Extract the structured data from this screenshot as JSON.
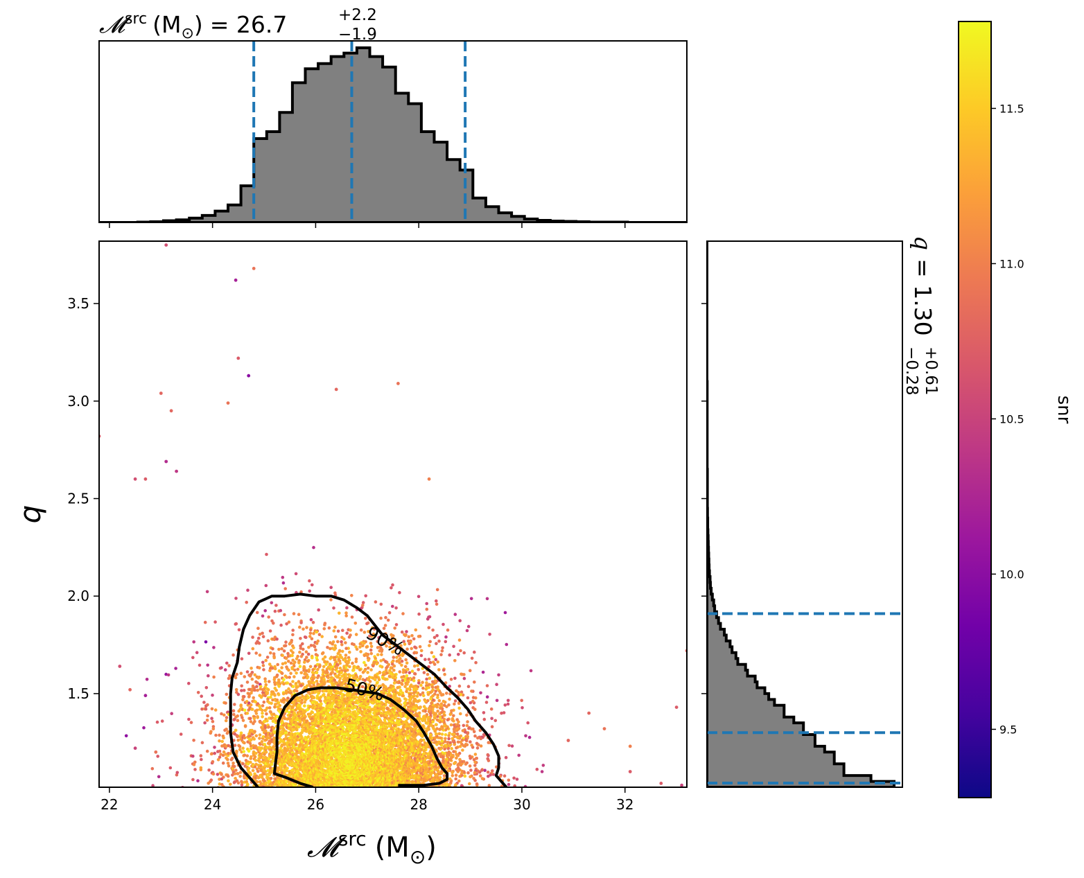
{
  "chart_data": [
    {
      "type": "scatter",
      "panel": "joint",
      "xlabel": "𝓜src (M⊙)",
      "xlabel_parts": {
        "symbol": "𝓜",
        "sup": "src",
        "units": "(M",
        "units_sub": "⊙",
        "units_close": ")"
      },
      "ylabel": "q",
      "xlim": [
        21.8,
        33.2
      ],
      "ylim": [
        1.02,
        3.82
      ],
      "xticks": [
        22,
        24,
        26,
        28,
        30,
        32
      ],
      "yticks": [
        1.5,
        2.0,
        2.5,
        3.0,
        3.5
      ],
      "xtick_labels": [
        "22",
        "24",
        "26",
        "28",
        "30",
        "32"
      ],
      "ytick_labels": [
        "1.5",
        "2.0",
        "2.5",
        "3.0",
        "3.5"
      ],
      "color_by": "snr",
      "point_cloud": {
        "x_center": 26.7,
        "x_spread": 1.1,
        "q_min": 1.0,
        "q_mode": 1.0,
        "snr_range": [
          9.28,
          11.78
        ]
      },
      "outlier_points": [
        {
          "x": 23.1,
          "y": 3.8,
          "snr": 10.6
        },
        {
          "x": 24.8,
          "y": 3.68,
          "snr": 10.9
        },
        {
          "x": 24.45,
          "y": 3.62,
          "snr": 10.2
        },
        {
          "x": 24.5,
          "y": 3.22,
          "snr": 10.7
        },
        {
          "x": 24.7,
          "y": 3.13,
          "snr": 10.0
        },
        {
          "x": 23.0,
          "y": 3.04,
          "snr": 10.8
        },
        {
          "x": 26.4,
          "y": 3.06,
          "snr": 10.8
        },
        {
          "x": 27.6,
          "y": 3.09,
          "snr": 10.9
        },
        {
          "x": 21.8,
          "y": 2.82,
          "snr": 10.7
        },
        {
          "x": 23.2,
          "y": 2.95,
          "snr": 10.8
        },
        {
          "x": 24.3,
          "y": 2.99,
          "snr": 10.9
        },
        {
          "x": 23.1,
          "y": 2.69,
          "snr": 10.3
        },
        {
          "x": 23.3,
          "y": 2.64,
          "snr": 10.4
        },
        {
          "x": 22.5,
          "y": 2.6,
          "snr": 10.6
        },
        {
          "x": 22.7,
          "y": 2.6,
          "snr": 10.7
        },
        {
          "x": 28.2,
          "y": 2.6,
          "snr": 11.0
        },
        {
          "x": 33.2,
          "y": 1.72,
          "snr": 10.8
        },
        {
          "x": 33.0,
          "y": 1.43,
          "snr": 10.7
        },
        {
          "x": 22.2,
          "y": 1.64,
          "snr": 10.6
        },
        {
          "x": 22.4,
          "y": 1.52,
          "snr": 10.8
        },
        {
          "x": 22.7,
          "y": 1.49,
          "snr": 10.2
        },
        {
          "x": 22.5,
          "y": 1.22,
          "snr": 10.5
        },
        {
          "x": 22.9,
          "y": 1.2,
          "snr": 10.9
        },
        {
          "x": 32.1,
          "y": 1.23,
          "snr": 11.0
        },
        {
          "x": 32.1,
          "y": 1.1,
          "snr": 10.7
        },
        {
          "x": 32.7,
          "y": 1.04,
          "snr": 10.7
        },
        {
          "x": 31.6,
          "y": 1.32,
          "snr": 10.9
        },
        {
          "x": 31.3,
          "y": 1.4,
          "snr": 10.8
        },
        {
          "x": 30.9,
          "y": 1.26,
          "snr": 10.8
        },
        {
          "x": 33.1,
          "y": 1.03,
          "snr": 10.5
        }
      ],
      "contours": [
        {
          "label": "90%",
          "label_at": {
            "x": 27.35,
            "y": 1.77,
            "angle_deg": 28
          },
          "path": [
            [
              24.88,
              1.02
            ],
            [
              24.75,
              1.06
            ],
            [
              24.55,
              1.12
            ],
            [
              24.4,
              1.2
            ],
            [
              24.35,
              1.3
            ],
            [
              24.35,
              1.4
            ],
            [
              24.35,
              1.5
            ],
            [
              24.38,
              1.58
            ],
            [
              24.48,
              1.66
            ],
            [
              24.52,
              1.74
            ],
            [
              24.6,
              1.83
            ],
            [
              24.72,
              1.9
            ],
            [
              24.9,
              1.97
            ],
            [
              25.15,
              2.0
            ],
            [
              25.4,
              2.0
            ],
            [
              25.7,
              2.01
            ],
            [
              26.0,
              2.0
            ],
            [
              26.3,
              2.0
            ],
            [
              26.55,
              1.98
            ],
            [
              26.8,
              1.94
            ],
            [
              27.0,
              1.9
            ],
            [
              27.3,
              1.8
            ],
            [
              27.5,
              1.76
            ],
            [
              27.7,
              1.72
            ],
            [
              28.0,
              1.66
            ],
            [
              28.3,
              1.6
            ],
            [
              28.55,
              1.53
            ],
            [
              28.75,
              1.48
            ],
            [
              28.95,
              1.42
            ],
            [
              29.1,
              1.36
            ],
            [
              29.3,
              1.3
            ],
            [
              29.45,
              1.24
            ],
            [
              29.55,
              1.18
            ],
            [
              29.55,
              1.12
            ],
            [
              29.5,
              1.08
            ],
            [
              29.6,
              1.05
            ],
            [
              29.7,
              1.02
            ]
          ]
        },
        {
          "label": "50%",
          "label_at": {
            "x": 26.95,
            "y": 1.52,
            "angle_deg": 15
          },
          "path": [
            [
              25.95,
              1.02
            ],
            [
              25.7,
              1.04
            ],
            [
              25.42,
              1.07
            ],
            [
              25.2,
              1.09
            ],
            [
              25.22,
              1.14
            ],
            [
              25.25,
              1.2
            ],
            [
              25.25,
              1.28
            ],
            [
              25.28,
              1.36
            ],
            [
              25.4,
              1.43
            ],
            [
              25.6,
              1.49
            ],
            [
              25.85,
              1.52
            ],
            [
              26.1,
              1.53
            ],
            [
              26.4,
              1.53
            ],
            [
              26.7,
              1.52
            ],
            [
              26.95,
              1.51
            ],
            [
              27.2,
              1.5
            ],
            [
              27.45,
              1.47
            ],
            [
              27.7,
              1.42
            ],
            [
              27.95,
              1.36
            ],
            [
              28.1,
              1.3
            ],
            [
              28.25,
              1.23
            ],
            [
              28.35,
              1.17
            ],
            [
              28.45,
              1.12
            ],
            [
              28.55,
              1.09
            ],
            [
              28.55,
              1.06
            ],
            [
              28.4,
              1.04
            ],
            [
              28.1,
              1.03
            ],
            [
              27.6,
              1.03
            ]
          ]
        }
      ]
    },
    {
      "type": "bar",
      "panel": "top-marginal",
      "orientation": "vertical",
      "title_parts": {
        "symbol": "𝓜",
        "sup": "src",
        "units": "(M",
        "units_sub": "⊙",
        "units_close": ")",
        "eq": "= 26.7",
        "plus": "+2.2",
        "minus": "−1.9"
      },
      "xlim": [
        21.8,
        33.2
      ],
      "bin_edges": [
        21.8,
        22.05,
        22.3,
        22.55,
        22.8,
        23.05,
        23.3,
        23.55,
        23.8,
        24.05,
        24.3,
        24.55,
        24.8,
        25.05,
        25.3,
        25.55,
        25.8,
        26.05,
        26.3,
        26.55,
        26.8,
        27.05,
        27.3,
        27.55,
        27.8,
        28.05,
        28.3,
        28.55,
        28.8,
        29.05,
        29.3,
        29.55,
        29.8,
        30.05,
        30.3,
        30.55,
        30.8,
        31.05,
        31.3,
        31.55,
        31.8,
        32.05,
        32.3,
        32.55,
        32.8,
        33.05,
        33.2
      ],
      "values": [
        0.0,
        0.0,
        0.0,
        0.002,
        0.004,
        0.01,
        0.015,
        0.025,
        0.04,
        0.065,
        0.1,
        0.21,
        0.48,
        0.52,
        0.63,
        0.8,
        0.88,
        0.91,
        0.95,
        0.97,
        1.0,
        0.95,
        0.89,
        0.74,
        0.68,
        0.52,
        0.46,
        0.36,
        0.3,
        0.14,
        0.09,
        0.055,
        0.035,
        0.02,
        0.012,
        0.008,
        0.006,
        0.004,
        0.002,
        0.002,
        0.002,
        0.0,
        0.0,
        0.0,
        0.0,
        0.0
      ],
      "quantile_lines": [
        24.8,
        26.7,
        28.9
      ],
      "xticks": [
        22,
        24,
        26,
        28,
        30,
        32
      ]
    },
    {
      "type": "bar",
      "panel": "right-marginal",
      "orientation": "horizontal",
      "title_parts": {
        "symbol": "q",
        "eq": "= 1.30",
        "plus": "+0.61",
        "minus": "−0.28"
      },
      "ylim": [
        1.02,
        3.82
      ],
      "bin_edges": [
        1.02,
        1.05,
        1.08,
        1.11,
        1.14,
        1.17,
        1.2,
        1.23,
        1.26,
        1.29,
        1.32,
        1.35,
        1.38,
        1.41,
        1.44,
        1.47,
        1.5,
        1.53,
        1.56,
        1.59,
        1.62,
        1.65,
        1.68,
        1.71,
        1.74,
        1.77,
        1.8,
        1.83,
        1.86,
        1.89,
        1.92,
        1.95,
        1.98,
        2.01,
        2.04,
        2.07,
        2.1,
        2.13,
        2.16,
        2.19,
        2.22,
        2.25,
        2.28,
        2.31,
        2.34,
        2.37,
        2.4,
        2.45,
        2.55,
        2.65,
        2.75,
        2.9,
        3.1,
        3.4,
        3.82
      ],
      "values": [
        0.97,
        0.85,
        0.71,
        0.71,
        0.66,
        0.66,
        0.61,
        0.56,
        0.56,
        0.5,
        0.5,
        0.45,
        0.4,
        0.4,
        0.35,
        0.32,
        0.3,
        0.26,
        0.25,
        0.21,
        0.2,
        0.16,
        0.15,
        0.13,
        0.12,
        0.1,
        0.09,
        0.07,
        0.06,
        0.05,
        0.04,
        0.035,
        0.028,
        0.022,
        0.018,
        0.016,
        0.013,
        0.011,
        0.01,
        0.009,
        0.008,
        0.007,
        0.006,
        0.005,
        0.004,
        0.004,
        0.003,
        0.002,
        0.002,
        0.001,
        0.001,
        0.001,
        0.0,
        0.0
      ],
      "quantile_lines": [
        1.02,
        1.3,
        1.91
      ]
    },
    {
      "type": "colorbar",
      "panel": "colorbar",
      "label": "snr",
      "range": [
        9.28,
        11.78
      ],
      "ticks": [
        9.5,
        10.0,
        10.5,
        11.0,
        11.5
      ],
      "tick_labels": [
        "9.5",
        "10.0",
        "10.5",
        "11.0",
        "11.5"
      ],
      "colormap": "plasma",
      "colormap_stops": [
        "#0d0887",
        "#46039f",
        "#7201a8",
        "#9c179e",
        "#bd3786",
        "#d8576b",
        "#ed7953",
        "#fb9f3a",
        "#fdca26",
        "#f0f921"
      ]
    }
  ]
}
